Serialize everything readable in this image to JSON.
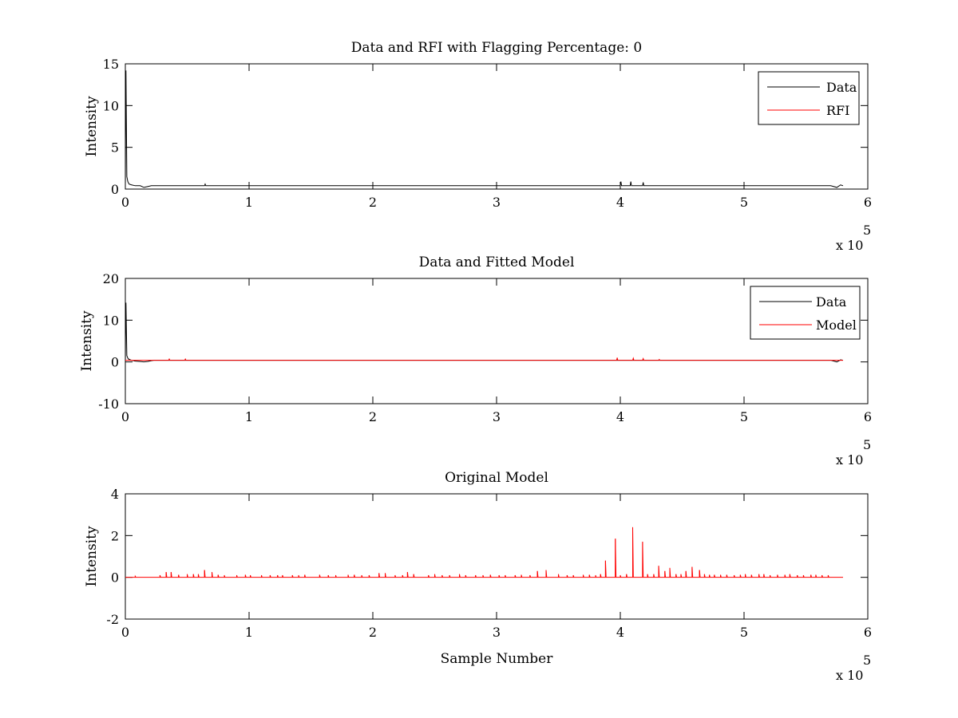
{
  "colors": {
    "data": "#000000",
    "rfi": "#ff0000",
    "model": "#ff0000",
    "axes": "#000000",
    "background": "#ffffff"
  },
  "chart_data": [
    {
      "type": "line",
      "title": "Data and RFI with Flagging Percentage: 0",
      "xlabel": "",
      "ylabel": "Intensity",
      "xlim": [
        0,
        600000
      ],
      "ylim": [
        0,
        15
      ],
      "xticks": [
        "0",
        "1",
        "2",
        "3",
        "4",
        "5",
        "6"
      ],
      "xtick_values": [
        0,
        100000,
        200000,
        300000,
        400000,
        500000,
        600000
      ],
      "yticks": [
        "0",
        "5",
        "10",
        "15"
      ],
      "ytick_values": [
        0,
        5,
        10,
        15
      ],
      "x_multiplier_label": "x 10",
      "x_multiplier_exponent": "5",
      "legend_position": "top-right",
      "legend": [
        {
          "label": "Data",
          "color": "#000000"
        },
        {
          "label": "RFI",
          "color": "#ff0000"
        }
      ],
      "series": [
        {
          "name": "Data",
          "color": "#000000",
          "x": [
            0,
            500,
            1200,
            2000,
            3000,
            5000,
            8000,
            12000,
            15000,
            18000,
            21000,
            23000,
            64000,
            64500,
            65000,
            400000,
            400500,
            401000,
            408000,
            408500,
            409000,
            418000,
            418500,
            419000,
            570000,
            575000,
            578000,
            580000
          ],
          "y": [
            0.3,
            14.2,
            1.5,
            0.9,
            0.6,
            0.5,
            0.4,
            0.4,
            0.2,
            0.3,
            0.4,
            0.4,
            0.4,
            0.6,
            0.4,
            0.4,
            0.9,
            0.4,
            0.4,
            0.9,
            0.4,
            0.4,
            0.8,
            0.4,
            0.4,
            0.2,
            0.5,
            0.4
          ]
        }
      ]
    },
    {
      "type": "line",
      "title": "Data and Fitted Model",
      "xlabel": "",
      "ylabel": "Intensity",
      "xlim": [
        0,
        600000
      ],
      "ylim": [
        -10,
        20
      ],
      "xticks": [
        "0",
        "1",
        "2",
        "3",
        "4",
        "5",
        "6"
      ],
      "xtick_values": [
        0,
        100000,
        200000,
        300000,
        400000,
        500000,
        600000
      ],
      "yticks": [
        "-10",
        "0",
        "10",
        "20"
      ],
      "ytick_values": [
        -10,
        0,
        10,
        20
      ],
      "x_multiplier_label": "x 10",
      "x_multiplier_exponent": "5",
      "legend_position": "top-right",
      "legend": [
        {
          "label": "Data",
          "color": "#000000"
        },
        {
          "label": "Model",
          "color": "#ff0000"
        }
      ],
      "series": [
        {
          "name": "Data",
          "color": "#000000",
          "x": [
            0,
            500,
            1200,
            2000,
            3000,
            5000,
            8000,
            12000,
            15000,
            18000,
            21000,
            23000,
            570000,
            575000,
            578000,
            580000
          ],
          "y": [
            0.3,
            14.2,
            1.5,
            0.9,
            0.6,
            0.4,
            0.2,
            0.1,
            0.0,
            0.1,
            0.3,
            0.4,
            0.4,
            0.0,
            0.5,
            0.4
          ]
        },
        {
          "name": "Model",
          "color": "#ff0000",
          "x": [
            0,
            30000,
            35000,
            35500,
            36000,
            48000,
            48500,
            49000,
            397000,
            397500,
            398000,
            410000,
            410500,
            411000,
            418000,
            418500,
            419000,
            431000,
            431500,
            432000,
            580000
          ],
          "y": [
            0.4,
            0.4,
            0.4,
            0.7,
            0.4,
            0.4,
            0.7,
            0.4,
            0.4,
            1.0,
            0.4,
            0.4,
            0.9,
            0.4,
            0.4,
            0.8,
            0.4,
            0.4,
            0.6,
            0.4,
            0.4
          ]
        }
      ]
    },
    {
      "type": "line",
      "title": "Original Model",
      "xlabel": "Sample Number",
      "ylabel": "Intensity",
      "xlim": [
        0,
        600000
      ],
      "ylim": [
        -2,
        4
      ],
      "xticks": [
        "0",
        "1",
        "2",
        "3",
        "4",
        "5",
        "6"
      ],
      "xtick_values": [
        0,
        100000,
        200000,
        300000,
        400000,
        500000,
        600000
      ],
      "yticks": [
        "-2",
        "0",
        "2",
        "4"
      ],
      "ytick_values": [
        -2,
        0,
        2,
        4
      ],
      "x_multiplier_label": "x 10",
      "x_multiplier_exponent": "5",
      "baseline": 0,
      "x_end": 580000,
      "series": [
        {
          "name": "",
          "color": "#ff0000",
          "peaks_x": [
            8000,
            28000,
            33000,
            37000,
            43000,
            50000,
            55000,
            59000,
            64000,
            70000,
            75000,
            80000,
            90000,
            97000,
            101000,
            110000,
            117000,
            123000,
            127000,
            135000,
            140000,
            145000,
            157000,
            164000,
            170000,
            180000,
            185000,
            191000,
            197000,
            205000,
            210000,
            218000,
            224000,
            228000,
            233000,
            245000,
            250000,
            256000,
            262000,
            270000,
            275000,
            283000,
            289000,
            295000,
            302000,
            307000,
            315000,
            320000,
            327000,
            333000,
            340000,
            350000,
            357000,
            362000,
            370000,
            375000,
            380000,
            384000,
            388000,
            396000,
            400000,
            405000,
            410000,
            418000,
            422000,
            427000,
            431000,
            436000,
            440000,
            445000,
            449000,
            453000,
            458000,
            464000,
            468000,
            472000,
            476000,
            481000,
            486000,
            492000,
            497000,
            501000,
            506000,
            512000,
            516000,
            521000,
            527000,
            533000,
            537000,
            543000,
            548000,
            554000,
            558000,
            563000,
            568000
          ],
          "peaks_y": [
            0.05,
            0.1,
            0.25,
            0.25,
            0.12,
            0.15,
            0.15,
            0.15,
            0.35,
            0.25,
            0.12,
            0.1,
            0.1,
            0.12,
            0.1,
            0.1,
            0.1,
            0.1,
            0.1,
            0.1,
            0.1,
            0.12,
            0.12,
            0.1,
            0.1,
            0.12,
            0.12,
            0.1,
            0.1,
            0.2,
            0.2,
            0.1,
            0.1,
            0.25,
            0.15,
            0.1,
            0.15,
            0.1,
            0.1,
            0.15,
            0.1,
            0.1,
            0.1,
            0.12,
            0.1,
            0.1,
            0.1,
            0.12,
            0.1,
            0.3,
            0.35,
            0.15,
            0.1,
            0.1,
            0.12,
            0.12,
            0.1,
            0.15,
            0.8,
            1.85,
            0.1,
            0.15,
            2.4,
            1.7,
            0.15,
            0.15,
            0.55,
            0.3,
            0.45,
            0.15,
            0.15,
            0.3,
            0.5,
            0.35,
            0.15,
            0.12,
            0.12,
            0.12,
            0.12,
            0.1,
            0.12,
            0.15,
            0.12,
            0.15,
            0.15,
            0.1,
            0.12,
            0.12,
            0.15,
            0.1,
            0.1,
            0.12,
            0.12,
            0.1,
            0.1
          ]
        }
      ]
    }
  ]
}
